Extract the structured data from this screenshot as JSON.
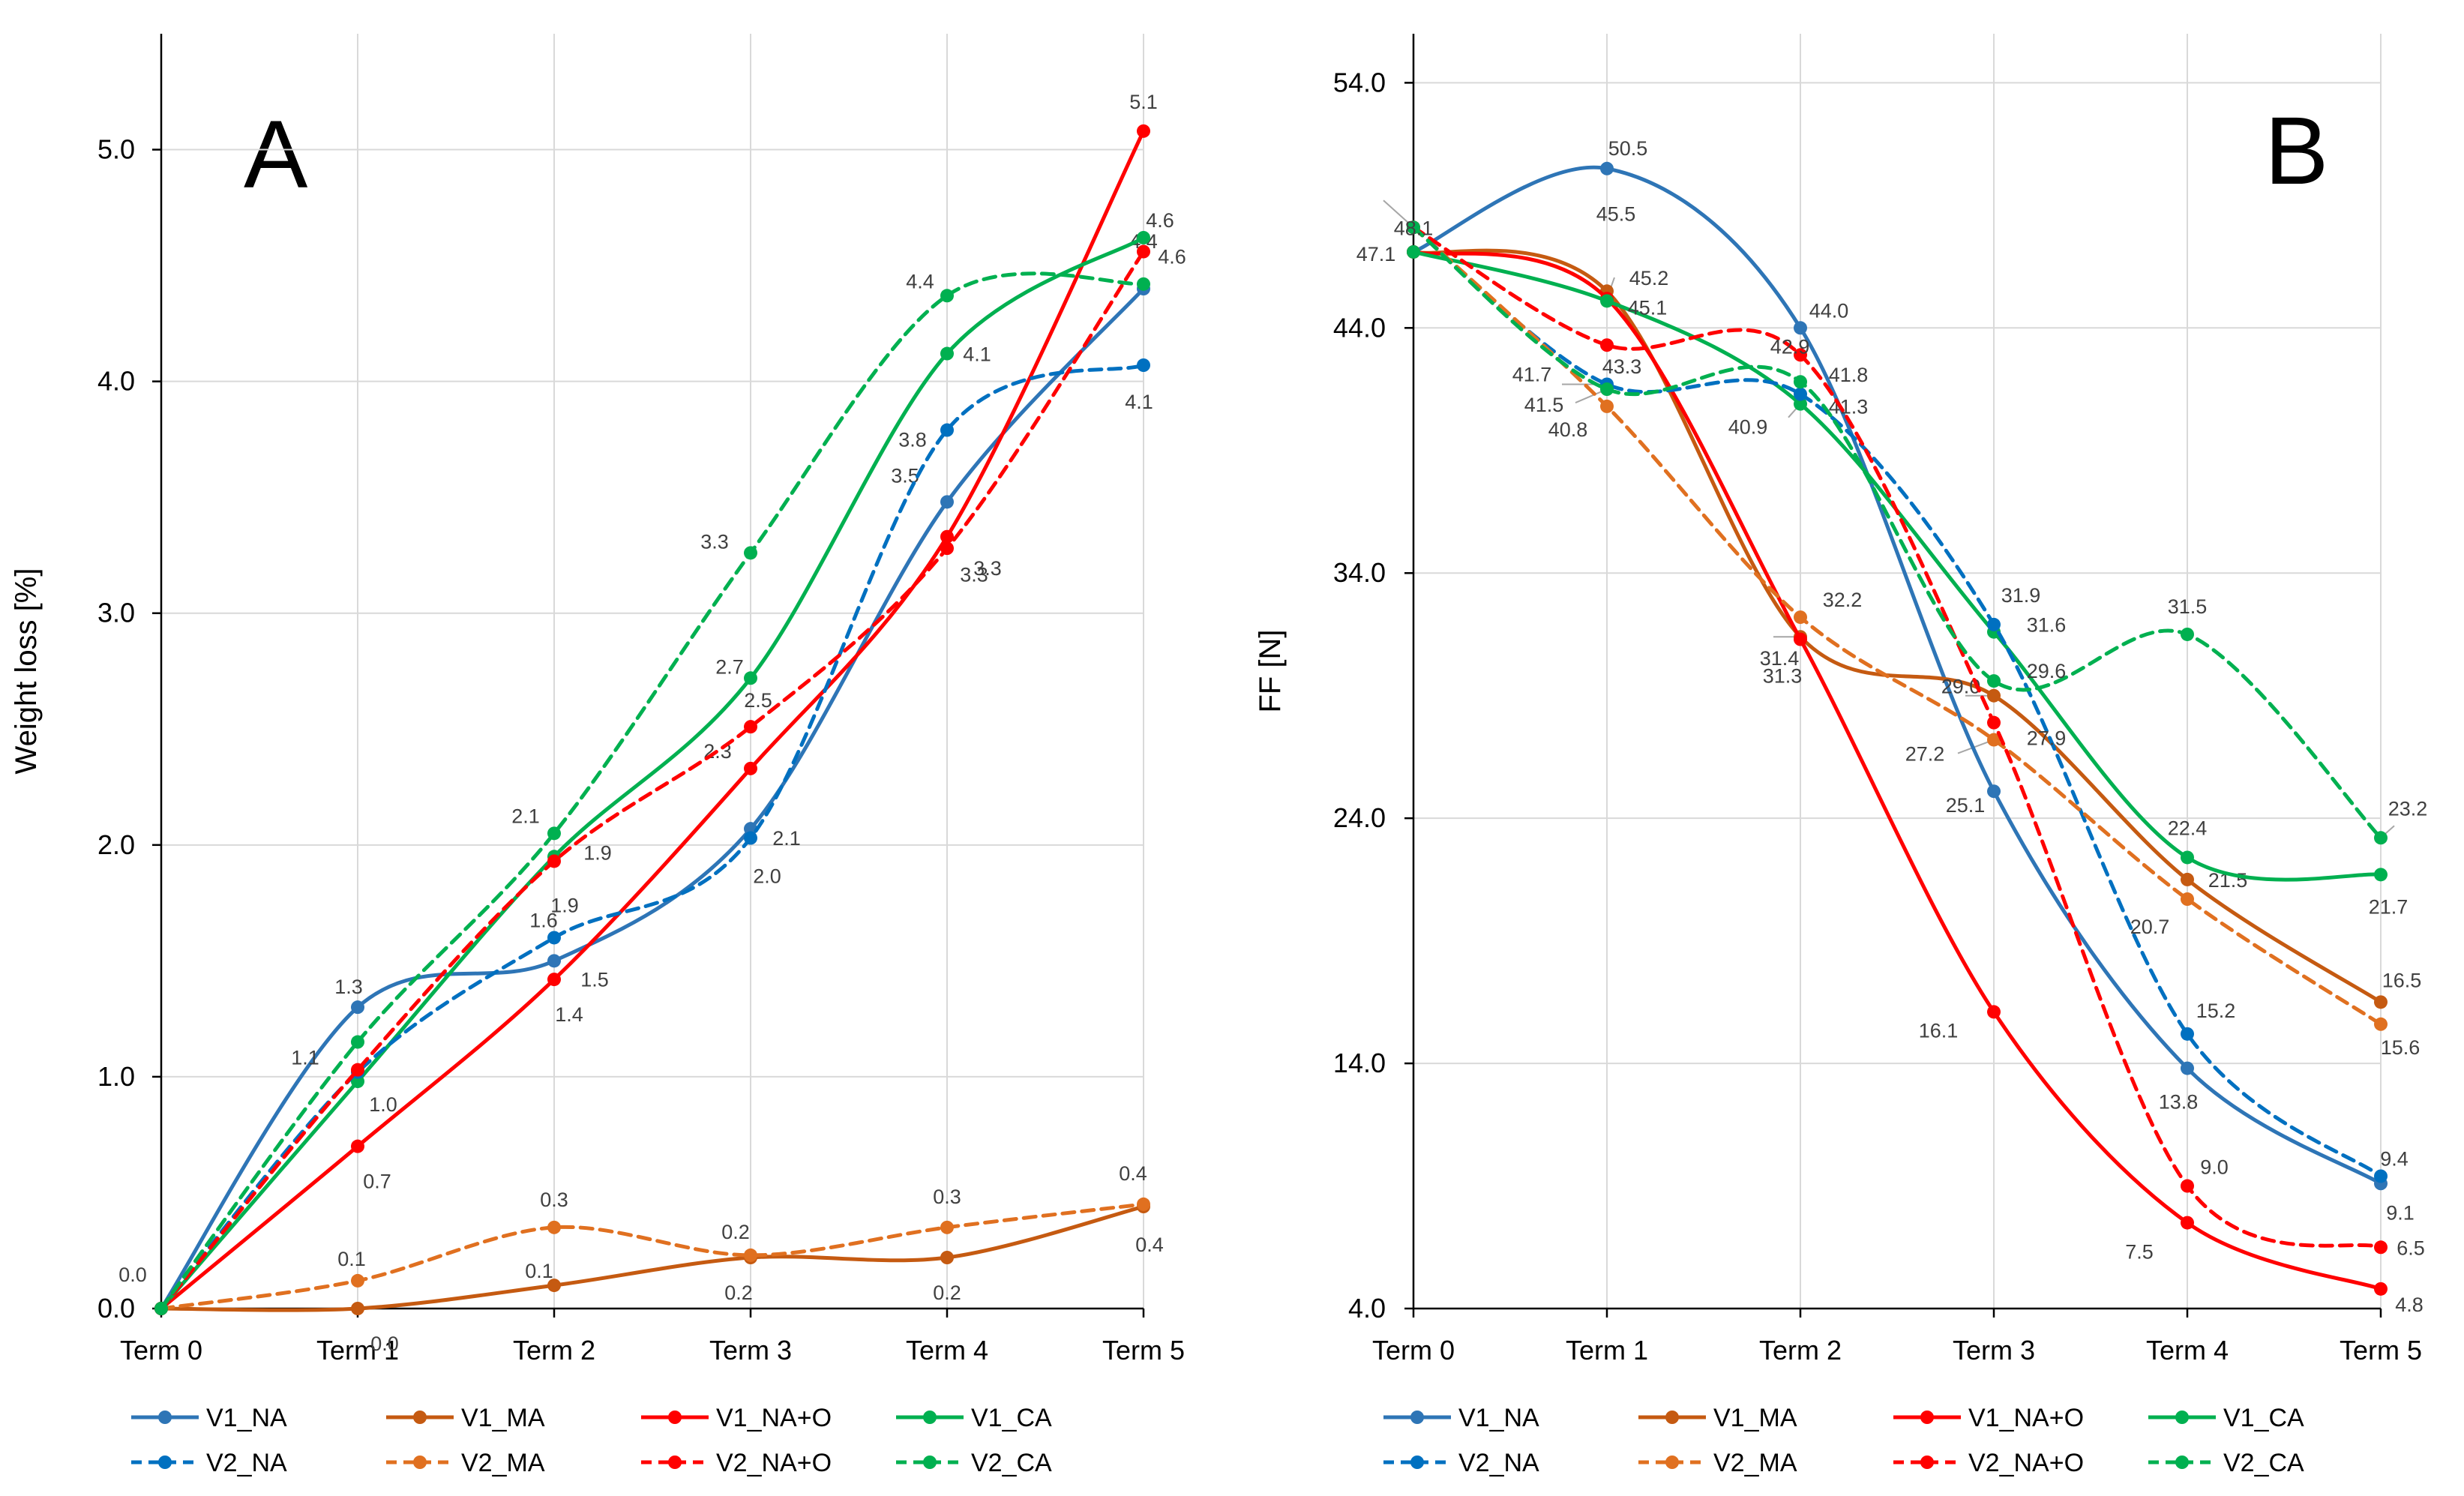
{
  "series_styles": [
    {
      "name": "V1_NA",
      "color": "#2E75B6",
      "dashed": false
    },
    {
      "name": "V1_MA",
      "color": "#C55A11",
      "dashed": false
    },
    {
      "name": "V1_NA+O",
      "color": "#FF0000",
      "dashed": false
    },
    {
      "name": "V1_CA",
      "color": "#00B050",
      "dashed": false
    },
    {
      "name": "V2_NA",
      "color": "#0070C0",
      "dashed": true
    },
    {
      "name": "V2_MA",
      "color": "#E07020",
      "dashed": true
    },
    {
      "name": "V2_NA+O",
      "color": "#FF0000",
      "dashed": true
    },
    {
      "name": "V2_CA",
      "color": "#00B050",
      "dashed": true
    }
  ],
  "chart_data": [
    {
      "type": "line",
      "panel": "A",
      "title": "",
      "xlabel": "",
      "ylabel": "Weight loss [%]",
      "categories": [
        "Term 0",
        "Term 1",
        "Term 2",
        "Term 3",
        "Term 4",
        "Term 5"
      ],
      "ylim": [
        0,
        5.5
      ],
      "yticks": [
        "0.0",
        "1.0",
        "2.0",
        "3.0",
        "4.0",
        "5.0"
      ],
      "grid": true,
      "legend": "bottom",
      "series": [
        {
          "name": "V1_NA",
          "values": [
            0.0,
            1.3,
            1.5,
            2.07,
            3.48,
            4.4
          ],
          "labels": [
            "",
            "1.3",
            "1.5",
            "2.1",
            "3.5",
            "4.4"
          ]
        },
        {
          "name": "V1_MA",
          "values": [
            0.0,
            0.0,
            0.1,
            0.22,
            0.22,
            0.44
          ],
          "labels": [
            "",
            "0.0",
            "0.1",
            "0.2",
            "0.2",
            "0.4"
          ]
        },
        {
          "name": "V1_NA+O",
          "values": [
            0.0,
            0.7,
            1.42,
            2.33,
            3.33,
            5.08
          ],
          "labels": [
            "",
            "0.7",
            "1.4",
            "2.3",
            "3.3",
            "5.1"
          ]
        },
        {
          "name": "V1_CA",
          "values": [
            0.0,
            0.98,
            1.95,
            2.72,
            4.12,
            4.62
          ],
          "labels": [
            "",
            "1.0",
            "1.9",
            "2.7",
            "4.1",
            "4.6"
          ]
        },
        {
          "name": "V2_NA",
          "values": [
            0.0,
            1.02,
            1.6,
            2.03,
            3.79,
            4.07
          ],
          "labels": [
            "",
            "",
            "1.6",
            "2.0",
            "3.8",
            "4.1"
          ]
        },
        {
          "name": "V2_MA",
          "values": [
            0.0,
            0.12,
            0.35,
            0.23,
            0.35,
            0.45
          ],
          "labels": [
            "0.0",
            "0.1",
            "0.3",
            "0.2",
            "0.3",
            "0.4"
          ]
        },
        {
          "name": "V2_NA+O",
          "values": [
            0.0,
            1.03,
            1.93,
            2.51,
            3.28,
            4.56
          ],
          "labels": [
            "",
            "",
            "1.9",
            "2.5",
            "3.3",
            "4.6"
          ]
        },
        {
          "name": "V2_CA",
          "values": [
            0.0,
            1.15,
            2.05,
            3.26,
            4.37,
            4.42
          ],
          "labels": [
            "",
            "1.1",
            "2.1",
            "3.3",
            "4.4",
            ""
          ]
        }
      ]
    },
    {
      "type": "line",
      "panel": "B",
      "title": "",
      "xlabel": "",
      "ylabel": "FF [N]",
      "categories": [
        "Term 0",
        "Term 1",
        "Term 2",
        "Term 3",
        "Term 4",
        "Term 5"
      ],
      "ylim": [
        4,
        56
      ],
      "yticks": [
        "4.0",
        "14.0",
        "24.0",
        "34.0",
        "44.0",
        "54.0"
      ],
      "grid": true,
      "legend": "bottom",
      "series": [
        {
          "name": "V1_NA",
          "values": [
            47.1,
            50.5,
            44.0,
            25.1,
            13.8,
            9.1
          ],
          "labels": [
            "",
            "50.5",
            "44.0",
            "25.1",
            "13.8",
            "9.1"
          ]
        },
        {
          "name": "V1_MA",
          "values": [
            47.1,
            45.5,
            31.4,
            29.0,
            21.5,
            16.5
          ],
          "labels": [
            "",
            "45.5",
            "31.4",
            "29.0",
            "21.5",
            "16.5"
          ]
        },
        {
          "name": "V1_NA+O",
          "values": [
            47.1,
            45.2,
            31.3,
            16.1,
            7.5,
            4.8
          ],
          "labels": [
            "",
            "45.2",
            "31.3",
            "16.1",
            "7.5",
            "4.8"
          ]
        },
        {
          "name": "V1_CA",
          "values": [
            47.1,
            45.1,
            40.9,
            31.6,
            22.4,
            21.7
          ],
          "labels": [
            "",
            "45.1",
            "40.9",
            "31.6",
            "22.4",
            "21.7"
          ]
        },
        {
          "name": "V2_NA",
          "values": [
            48.1,
            41.7,
            41.3,
            31.9,
            15.2,
            9.4
          ],
          "labels": [
            "",
            "41.7",
            "41.3",
            "31.9",
            "15.2",
            "9.4"
          ]
        },
        {
          "name": "V2_MA",
          "values": [
            48.1,
            40.8,
            32.2,
            27.2,
            20.7,
            15.6
          ],
          "labels": [
            "",
            "40.8",
            "32.2",
            "27.2",
            "20.7",
            "15.6"
          ]
        },
        {
          "name": "V2_NA+O",
          "values": [
            48.1,
            43.3,
            42.9,
            27.9,
            9.0,
            6.5
          ],
          "labels": [
            "",
            "43.3",
            "42.9",
            "27.9",
            "9.0",
            "6.5"
          ]
        },
        {
          "name": "V2_CA",
          "values": [
            48.1,
            41.5,
            41.8,
            29.6,
            31.5,
            23.2
          ],
          "labels": [
            "48.1",
            "41.5",
            "41.8",
            "29.6",
            "31.5",
            "23.2"
          ]
        }
      ],
      "extra_labels": [
        "47.1"
      ]
    }
  ]
}
